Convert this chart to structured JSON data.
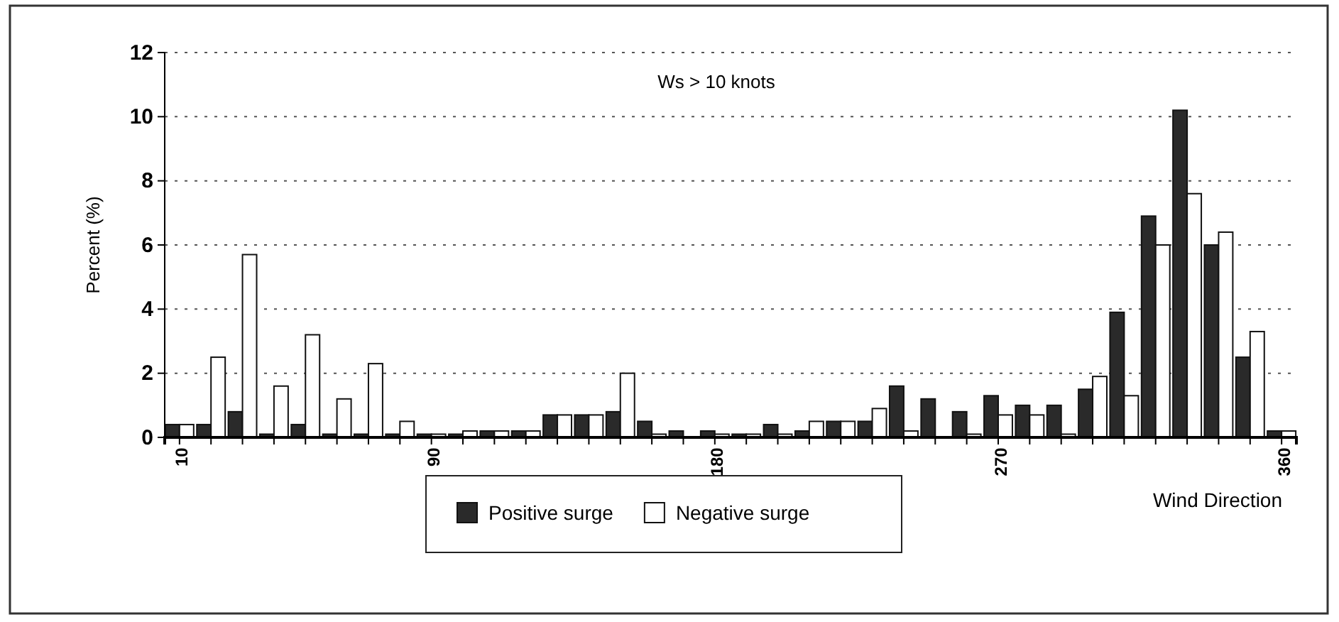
{
  "chart_data": {
    "type": "bar",
    "title": "Ws > 10 knots",
    "xlabel": "Wind Direction",
    "ylabel": "Percent (%)",
    "categories": [
      "10",
      null,
      null,
      null,
      null,
      null,
      null,
      null,
      "90",
      null,
      null,
      null,
      null,
      null,
      null,
      null,
      null,
      "180",
      null,
      null,
      null,
      null,
      null,
      null,
      null,
      null,
      "270",
      null,
      null,
      null,
      null,
      null,
      null,
      null,
      null,
      "360"
    ],
    "series": [
      {
        "name": "Positive surge",
        "color": "#2a2a2a",
        "values": [
          0.4,
          0.4,
          0.8,
          0.1,
          0.4,
          0.1,
          0.1,
          0.1,
          0.1,
          0.1,
          0.2,
          0.2,
          0.7,
          0.7,
          0.8,
          0.5,
          0.2,
          0.2,
          0.1,
          0.4,
          0.2,
          0.5,
          0.5,
          1.6,
          1.2,
          0.8,
          1.3,
          1.0,
          1.0,
          1.5,
          3.9,
          6.9,
          10.2,
          6.0,
          2.5,
          0.2
        ]
      },
      {
        "name": "Negative surge",
        "color": "#ffffff",
        "values": [
          0.4,
          2.5,
          5.7,
          1.6,
          3.2,
          1.2,
          2.3,
          0.5,
          0.1,
          0.2,
          0.2,
          0.2,
          0.7,
          0.7,
          2.0,
          0.1,
          0.0,
          0.1,
          0.1,
          0.1,
          0.5,
          0.5,
          0.9,
          0.2,
          0.0,
          0.1,
          0.7,
          0.7,
          0.1,
          1.9,
          1.3,
          6.0,
          7.6,
          6.4,
          3.3,
          0.2
        ]
      }
    ],
    "ylim": [
      0,
      12
    ],
    "yticks": [
      0,
      2,
      4,
      6,
      8,
      10,
      12
    ],
    "grid": "y",
    "legend": "bottom"
  }
}
